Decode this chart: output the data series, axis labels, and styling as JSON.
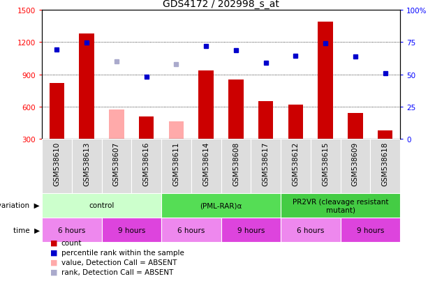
{
  "title": "GDS4172 / 202998_s_at",
  "samples": [
    "GSM538610",
    "GSM538613",
    "GSM538607",
    "GSM538616",
    "GSM538611",
    "GSM538614",
    "GSM538608",
    "GSM538617",
    "GSM538612",
    "GSM538615",
    "GSM538609",
    "GSM538618"
  ],
  "count_values": [
    820,
    1280,
    null,
    510,
    null,
    935,
    850,
    650,
    620,
    1390,
    540,
    380
  ],
  "count_absent": [
    null,
    null,
    570,
    null,
    460,
    null,
    null,
    null,
    null,
    null,
    null,
    null
  ],
  "percentile_values": [
    1130,
    1195,
    null,
    880,
    null,
    1165,
    1125,
    1005,
    1070,
    1190,
    1065,
    910
  ],
  "percentile_absent": [
    null,
    null,
    1020,
    null,
    995,
    null,
    null,
    null,
    null,
    null,
    null,
    null
  ],
  "ylim_left": [
    300,
    1500
  ],
  "ylim_right": [
    0,
    100
  ],
  "left_ticks": [
    300,
    600,
    900,
    1200,
    1500
  ],
  "right_ticks": [
    0,
    25,
    50,
    75,
    100
  ],
  "color_count": "#cc0000",
  "color_count_absent": "#ffaaaa",
  "color_percentile": "#0000cc",
  "color_percentile_absent": "#aaaacc",
  "genotype_groups": [
    {
      "label": "control",
      "start": 0,
      "end": 4,
      "color": "#ccffcc"
    },
    {
      "label": "(PML-RAR)α",
      "start": 4,
      "end": 8,
      "color": "#55dd55"
    },
    {
      "label": "PR2VR (cleavage resistant\nmutant)",
      "start": 8,
      "end": 12,
      "color": "#44cc44"
    }
  ],
  "time_groups": [
    {
      "label": "6 hours",
      "start": 0,
      "end": 2,
      "color": "#ee88ee"
    },
    {
      "label": "9 hours",
      "start": 2,
      "end": 4,
      "color": "#dd44dd"
    },
    {
      "label": "6 hours",
      "start": 4,
      "end": 6,
      "color": "#ee88ee"
    },
    {
      "label": "9 hours",
      "start": 6,
      "end": 8,
      "color": "#dd44dd"
    },
    {
      "label": "6 hours",
      "start": 8,
      "end": 10,
      "color": "#ee88ee"
    },
    {
      "label": "9 hours",
      "start": 10,
      "end": 12,
      "color": "#dd44dd"
    }
  ],
  "bg_color": "#ffffff",
  "label_fontsize": 7.5,
  "tick_fontsize": 7.5,
  "title_fontsize": 10
}
